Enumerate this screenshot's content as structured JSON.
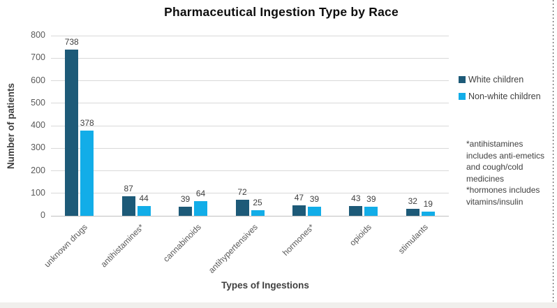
{
  "chart_data": {
    "type": "bar",
    "title": "Pharmaceutical Ingestion Type by Race",
    "xlabel": "Types of Ingestions",
    "ylabel": "Number of patients",
    "ylim": [
      0,
      800
    ],
    "ytick_step": 100,
    "grid": true,
    "legend_position": "right",
    "data_labels": true,
    "categories": [
      "unknown drugs",
      "antihistamines*",
      "cannabinoids",
      "antihypertensives",
      "hormones*",
      "opioids",
      "stimulants"
    ],
    "series": [
      {
        "name": "White children",
        "color": "#1d5a78",
        "values": [
          738,
          87,
          39,
          72,
          47,
          43,
          32
        ]
      },
      {
        "name": "Non-white children",
        "color": "#12ade8",
        "values": [
          378,
          44,
          64,
          25,
          39,
          39,
          19
        ]
      }
    ],
    "annotation_lines": [
      "*antihistamines",
      "includes anti-emetics",
      "and cough/cold",
      "medicines",
      "*hormones includes",
      "vitamins/insulin"
    ]
  }
}
